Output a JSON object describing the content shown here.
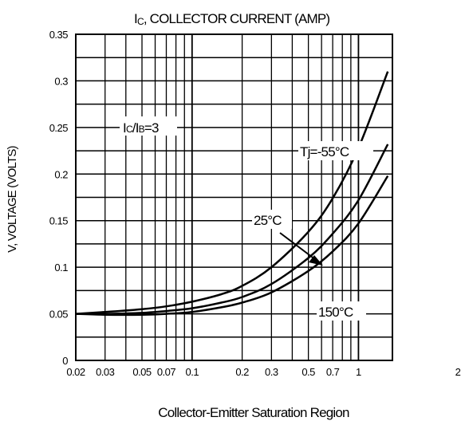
{
  "chart_data": {
    "type": "line",
    "title_prefix": "I",
    "title_sub": "C",
    "title_rest": ", COLLECTOR CURRENT (AMP)",
    "xlabel": "Collector-Emitter Saturation Region",
    "ylabel": "V, VOLTAGE (VOLTS)",
    "x_scale": "log",
    "xlim": [
      0.02,
      2
    ],
    "ylim": [
      0,
      0.35
    ],
    "grid": true,
    "x_ticks": [
      "0.02",
      "0.03",
      "0.05",
      "0.07",
      "0.1",
      "0.2",
      "0.3",
      "0.5",
      "0.7",
      "1",
      "2"
    ],
    "y_ticks": [
      "0",
      "0.05",
      "0.1",
      "0.15",
      "0.2",
      "0.25",
      "0.3",
      "0.35"
    ],
    "condition": {
      "p1": "I",
      "s1": "C",
      "slash": "/I",
      "s2": "B",
      "p2": "=3"
    },
    "series": [
      {
        "name": "Tj=-55°C",
        "x": [
          0.02,
          0.03,
          0.05,
          0.07,
          0.1,
          0.15,
          0.2,
          0.3,
          0.5,
          0.7,
          1.0,
          1.5
        ],
        "y": [
          0.05,
          0.052,
          0.055,
          0.058,
          0.063,
          0.071,
          0.08,
          0.1,
          0.138,
          0.174,
          0.228,
          0.31
        ]
      },
      {
        "name": "25°C",
        "x": [
          0.02,
          0.03,
          0.05,
          0.07,
          0.1,
          0.15,
          0.2,
          0.3,
          0.5,
          0.7,
          1.0,
          1.5
        ],
        "y": [
          0.05,
          0.05,
          0.051,
          0.053,
          0.056,
          0.062,
          0.068,
          0.082,
          0.11,
          0.136,
          0.172,
          0.232
        ]
      },
      {
        "name": "150°C",
        "x": [
          0.02,
          0.03,
          0.05,
          0.07,
          0.1,
          0.15,
          0.2,
          0.3,
          0.5,
          0.7,
          1.0,
          1.5
        ],
        "y": [
          0.05,
          0.049,
          0.049,
          0.05,
          0.052,
          0.057,
          0.062,
          0.073,
          0.096,
          0.117,
          0.147,
          0.198
        ]
      }
    ],
    "annotations": {
      "tj": "Tj=-55°C",
      "t25": "25°C",
      "t150": "150°C"
    }
  }
}
